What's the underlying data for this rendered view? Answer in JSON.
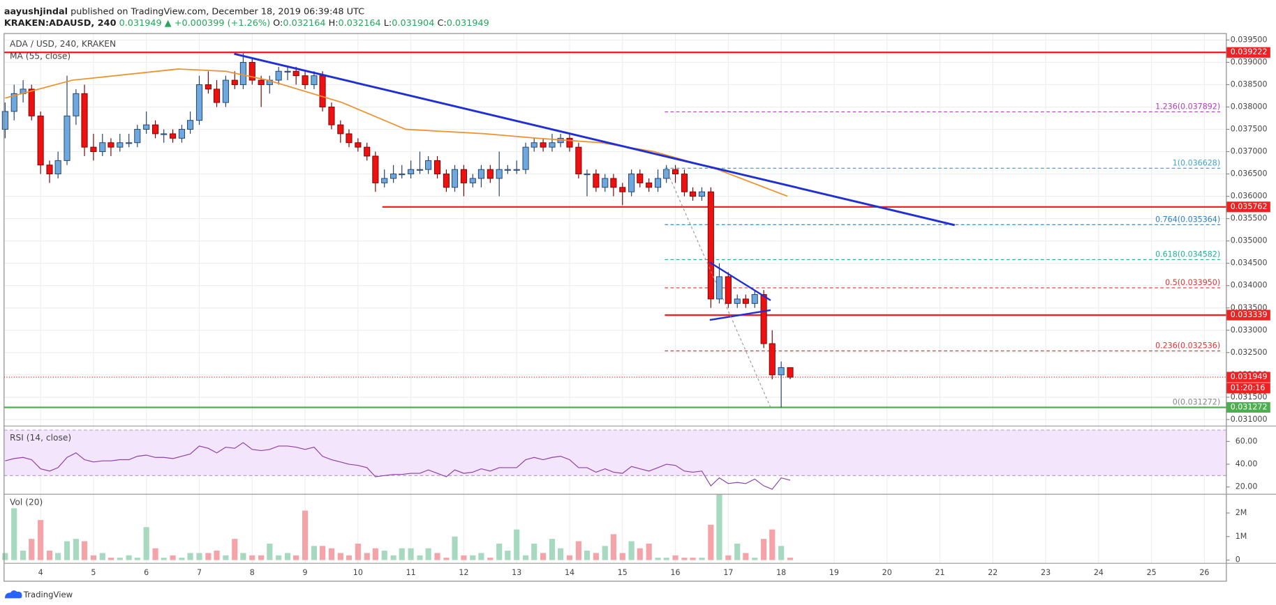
{
  "header": {
    "author": "aayushjindal",
    "published": "published on TradingView.com, December 18, 2019 06:39:48 UTC",
    "symbol": "KRAKEN:ADAUSD, 240",
    "change": "▲ +0.000399 (+1.26%)",
    "o": "O:",
    "h": "H:",
    "l": "L:",
    "c": "C:"
  },
  "chart_data": {
    "type": "candlestick",
    "title": "ADA / USD, 240, KRAKEN",
    "x": [
      3.33,
      3.5,
      3.67,
      3.83,
      4,
      4.17,
      4.33,
      4.5,
      4.67,
      4.83,
      5,
      5.17,
      5.33,
      5.5,
      5.67,
      5.83,
      6,
      6.17,
      6.33,
      6.5,
      6.67,
      6.83,
      7,
      7.17,
      7.33,
      7.5,
      7.67,
      7.83,
      8,
      8.17,
      8.33,
      8.5,
      8.67,
      8.83,
      9,
      9.17,
      9.33,
      9.5,
      9.67,
      9.83,
      10,
      10.17,
      10.33,
      10.5,
      10.67,
      10.83,
      11,
      11.17,
      11.33,
      11.5,
      11.67,
      11.83,
      12,
      12.17,
      12.33,
      12.5,
      12.67,
      12.83,
      13,
      13.17,
      13.33,
      13.5,
      13.67,
      13.83,
      14,
      14.17,
      14.33,
      14.5,
      14.67,
      14.83,
      15,
      15.17,
      15.33,
      15.5,
      15.67,
      15.83,
      16,
      16.17,
      16.33,
      16.5,
      16.67,
      16.83,
      17,
      17.17,
      17.33,
      17.5,
      17.67,
      17.83,
      18,
      18.17
    ],
    "open": [
      0.0375,
      0.0379,
      0.0383,
      0.0384,
      0.0378,
      0.0367,
      0.0365,
      0.0368,
      0.0378,
      0.0383,
      0.0371,
      0.037,
      0.0372,
      0.0371,
      0.0372,
      0.0372,
      0.0375,
      0.0376,
      0.0374,
      0.0374,
      0.0373,
      0.0375,
      0.0377,
      0.0385,
      0.0384,
      0.0381,
      0.0386,
      0.0385,
      0.039,
      0.0386,
      0.0385,
      0.0386,
      0.0388,
      0.0388,
      0.0387,
      0.0385,
      0.0387,
      0.038,
      0.0376,
      0.0374,
      0.0372,
      0.0371,
      0.0369,
      0.0363,
      0.0364,
      0.0365,
      0.0365,
      0.0366,
      0.0366,
      0.0368,
      0.0365,
      0.0362,
      0.0366,
      0.0363,
      0.0364,
      0.0366,
      0.0364,
      0.0366,
      0.0366,
      0.0366,
      0.0371,
      0.0372,
      0.0371,
      0.0372,
      0.0373,
      0.0371,
      0.0365,
      0.0365,
      0.0362,
      0.0364,
      0.0362,
      0.0361,
      0.0365,
      0.0363,
      0.0362,
      0.0364,
      0.0366,
      0.0365,
      0.0361,
      0.036,
      0.0361,
      0.0337,
      0.0342,
      0.0336,
      0.0337,
      0.0336,
      0.0338,
      0.0327,
      0.032,
      0.032164
    ],
    "high": [
      0.0381,
      0.0385,
      0.0386,
      0.0385,
      0.0379,
      0.0368,
      0.037,
      0.0387,
      0.0384,
      0.0385,
      0.0374,
      0.0374,
      0.0373,
      0.0374,
      0.0374,
      0.0376,
      0.0379,
      0.0377,
      0.0375,
      0.0375,
      0.0376,
      0.0379,
      0.0387,
      0.0388,
      0.0386,
      0.0387,
      0.0388,
      0.0392,
      0.0391,
      0.0387,
      0.0387,
      0.0389,
      0.0389,
      0.0389,
      0.0388,
      0.0388,
      0.0388,
      0.0381,
      0.0377,
      0.0375,
      0.0373,
      0.0372,
      0.037,
      0.0366,
      0.0367,
      0.0367,
      0.0368,
      0.037,
      0.0369,
      0.0369,
      0.0366,
      0.0367,
      0.0367,
      0.0365,
      0.0367,
      0.0367,
      0.037,
      0.0367,
      0.0368,
      0.0372,
      0.0373,
      0.0373,
      0.0374,
      0.0374,
      0.0374,
      0.0372,
      0.0366,
      0.0366,
      0.0365,
      0.0365,
      0.0363,
      0.0366,
      0.0366,
      0.0364,
      0.0366,
      0.0367,
      0.0367,
      0.0366,
      0.0362,
      0.0362,
      0.0362,
      0.0345,
      0.0343,
      0.0338,
      0.0338,
      0.0339,
      0.0339,
      0.033,
      0.0323,
      0.032164
    ],
    "low": [
      0.0373,
      0.0377,
      0.0381,
      0.0377,
      0.0365,
      0.0363,
      0.0364,
      0.0367,
      0.0376,
      0.0369,
      0.0368,
      0.0369,
      0.0369,
      0.037,
      0.0371,
      0.0371,
      0.0374,
      0.0373,
      0.0372,
      0.0372,
      0.0372,
      0.0374,
      0.0376,
      0.0383,
      0.038,
      0.038,
      0.0384,
      0.0384,
      0.0385,
      0.038,
      0.0383,
      0.0385,
      0.0386,
      0.0385,
      0.0384,
      0.0384,
      0.0379,
      0.0375,
      0.0372,
      0.0371,
      0.037,
      0.0368,
      0.0361,
      0.0362,
      0.0363,
      0.0364,
      0.0364,
      0.0365,
      0.0365,
      0.0364,
      0.0361,
      0.0361,
      0.036,
      0.0362,
      0.0362,
      0.0363,
      0.036,
      0.0365,
      0.0365,
      0.0365,
      0.037,
      0.037,
      0.037,
      0.0371,
      0.037,
      0.0364,
      0.036,
      0.0361,
      0.0361,
      0.036,
      0.0358,
      0.036,
      0.0362,
      0.0361,
      0.0361,
      0.0363,
      0.0363,
      0.036,
      0.0359,
      0.0359,
      0.0335,
      0.0336,
      0.0335,
      0.0335,
      0.0335,
      0.0335,
      0.0326,
      0.0319,
      0.031272,
      0.031904
    ],
    "close": [
      0.0379,
      0.0383,
      0.0384,
      0.0378,
      0.0367,
      0.0365,
      0.0368,
      0.0378,
      0.0383,
      0.0371,
      0.037,
      0.0372,
      0.0371,
      0.0372,
      0.0372,
      0.0375,
      0.0376,
      0.0374,
      0.0374,
      0.0373,
      0.0375,
      0.0377,
      0.0385,
      0.0384,
      0.0381,
      0.0386,
      0.0385,
      0.039,
      0.0386,
      0.0385,
      0.0386,
      0.0388,
      0.0388,
      0.0387,
      0.0385,
      0.0387,
      0.038,
      0.0376,
      0.0374,
      0.0372,
      0.0371,
      0.0369,
      0.0363,
      0.0364,
      0.0365,
      0.0365,
      0.0366,
      0.0366,
      0.0368,
      0.0365,
      0.0362,
      0.0366,
      0.0363,
      0.0364,
      0.0366,
      0.0364,
      0.0366,
      0.0366,
      0.0366,
      0.0371,
      0.0372,
      0.0371,
      0.0372,
      0.0373,
      0.0371,
      0.0365,
      0.0365,
      0.0362,
      0.0364,
      0.0362,
      0.0361,
      0.0365,
      0.0363,
      0.0362,
      0.0364,
      0.0366,
      0.0365,
      0.0361,
      0.036,
      0.0361,
      0.0337,
      0.0342,
      0.0336,
      0.0337,
      0.0336,
      0.0338,
      0.0327,
      0.032,
      0.032164,
      0.031949
    ],
    "up_color": "#6fa8dc",
    "down_color": "#ee1111",
    "xlim": [
      3.31,
      26.415
    ],
    "xticks": [
      4,
      5,
      6,
      7,
      8,
      9,
      10,
      11,
      12,
      13,
      14,
      15,
      16,
      17,
      18,
      19,
      20,
      21,
      22,
      23,
      24,
      25,
      26
    ],
    "ylim": [
      0.030873,
      0.039645
    ],
    "yticks": [
      {
        "value": 0.0395,
        "label": "0.039500"
      },
      {
        "value": 0.039,
        "label": "0.039000"
      },
      {
        "value": 0.0385,
        "label": "0.038500"
      },
      {
        "value": 0.038,
        "label": "0.038000"
      },
      {
        "value": 0.0375,
        "label": "0.037500"
      },
      {
        "value": 0.037,
        "label": "0.037000"
      },
      {
        "value": 0.0365,
        "label": "0.036500"
      },
      {
        "value": 0.036,
        "label": "0.036000"
      },
      {
        "value": 0.0355,
        "label": "0.035500"
      },
      {
        "value": 0.035,
        "label": "0.035000"
      },
      {
        "value": 0.0345,
        "label": "0.034500"
      },
      {
        "value": 0.034,
        "label": "0.034000"
      },
      {
        "value": 0.0335,
        "label": "0.033500"
      },
      {
        "value": 0.033,
        "label": "0.033000"
      },
      {
        "value": 0.0325,
        "label": "0.032500"
      },
      {
        "value": 0.032,
        "label": "0.032000"
      },
      {
        "value": 0.0315,
        "label": "0.031500"
      },
      {
        "value": 0.031,
        "label": "0.031000"
      }
    ],
    "grid": true,
    "ma": {
      "name": "MA (55, close)",
      "color": "#f0902c",
      "x": [
        3.33,
        4.6,
        6.6,
        7.5,
        8.3,
        9.7,
        10.9,
        12.4,
        13.4,
        14.6,
        15.6,
        16.8,
        18.12
      ],
      "values": [
        0.0382,
        0.0386,
        0.03885,
        0.0388,
        0.0386,
        0.0381,
        0.0375,
        0.0374,
        0.0373,
        0.0372,
        0.037,
        0.0366,
        0.036
      ]
    },
    "levels": [
      {
        "price": 0.039222,
        "color": "#ee2222"
      },
      {
        "price": 0.035762,
        "color": "#ee2222",
        "from": 10.46
      },
      {
        "price": 0.033339,
        "color": "#ee2222",
        "from": 15.8
      },
      {
        "price": 0.031272,
        "color": "#4caf50"
      }
    ],
    "last_color": "#ee2222",
    "timer": "01:20:16",
    "fib_x": [
      15.8,
      26.3
    ],
    "fibs": [
      {
        "label": "1.236(0.037892)",
        "price": 0.037892,
        "color": "#b041b8"
      },
      {
        "label": "1(0.036628)",
        "price": 0.036628,
        "color": "#45a4c8"
      },
      {
        "label": "0.764(0.035364)",
        "price": 0.035364,
        "color": "#2b7fc2"
      },
      {
        "label": "0.618(0.034582)",
        "price": 0.034582,
        "color": "#22b199"
      },
      {
        "label": "0.5(0.033950)",
        "price": 0.03395,
        "color": "#e03232"
      },
      {
        "label": "0.236(0.032536)",
        "price": 0.032536,
        "color": "#e03232"
      },
      {
        "label": "0(0.031272)",
        "price": 0.031272,
        "color": "#888888"
      }
    ],
    "trendlines": [
      {
        "x": [
          7.66,
          21.28
        ],
        "y": [
          0.03919,
          0.035355
        ],
        "color": "#1f2fd6",
        "width": 2.5
      },
      {
        "x": [
          16.65,
          17.8
        ],
        "y": [
          0.03452,
          0.03367
        ],
        "color": "#1f2fd6",
        "width": 2
      },
      {
        "x": [
          16.65,
          17.8
        ],
        "y": [
          0.03323,
          0.03345
        ],
        "color": "#1f2fd6",
        "width": 2
      },
      {
        "x": [
          15.82,
          17.8
        ],
        "y": [
          0.03662,
          0.03127
        ],
        "color": "#999999",
        "width": 1,
        "dashed": true
      }
    ],
    "rsi": {
      "title": "RSI (14, close)",
      "color": "#8e3fa8",
      "band": [
        30,
        70
      ],
      "ylim": [
        14.3,
        72.9
      ],
      "yticks": [
        {
          "value": 60,
          "label": "60.00"
        },
        {
          "value": 40,
          "label": "40.00"
        },
        {
          "value": 20,
          "label": "20.00"
        }
      ],
      "values": [
        43,
        45,
        46,
        44,
        36,
        34,
        37,
        46,
        50,
        44,
        42,
        43,
        43,
        44,
        44,
        47,
        48,
        46,
        46,
        45,
        47,
        49,
        56,
        54,
        50,
        55,
        54,
        59,
        53,
        52,
        53,
        56,
        56,
        55,
        53,
        55,
        47,
        44,
        42,
        40,
        39,
        37,
        29,
        30,
        31,
        31,
        32,
        32,
        35,
        32,
        29,
        35,
        32,
        33,
        36,
        34,
        37,
        37,
        37,
        44,
        46,
        44,
        46,
        47,
        44,
        37,
        37,
        33,
        36,
        33,
        32,
        38,
        36,
        34,
        37,
        40,
        39,
        34,
        33,
        34,
        21,
        28,
        23,
        24,
        23,
        27,
        21,
        18,
        28,
        26
      ]
    },
    "volume": {
      "title": "Vol (20)",
      "up_color": "#a6d9bf",
      "down_color": "#f4a4a8",
      "ylim": [
        -138000,
        2760000
      ],
      "yticks": [
        0,
        {
          "value": 1000000,
          "label": "1M"
        },
        {
          "value": 2000000,
          "label": "2M"
        }
      ],
      "values": [
        300000,
        2200000,
        400000,
        900000,
        1700000,
        400000,
        300000,
        800000,
        900000,
        800000,
        200000,
        300000,
        100000,
        100000,
        200000,
        100000,
        1400000,
        500000,
        100000,
        200000,
        100000,
        300000,
        300000,
        300000,
        400000,
        200000,
        900000,
        300000,
        200000,
        200000,
        700000,
        200000,
        300000,
        200000,
        2100000,
        600000,
        600000,
        500000,
        300000,
        200000,
        700000,
        300000,
        500000,
        400000,
        200000,
        500000,
        500000,
        200000,
        500000,
        300000,
        100000,
        1000000,
        200000,
        200000,
        300000,
        100000,
        700000,
        400000,
        1300000,
        200000,
        700000,
        300000,
        900000,
        500000,
        200000,
        800000,
        400000,
        300000,
        600000,
        1100000,
        300000,
        800000,
        500000,
        700000,
        100000,
        100000,
        200000,
        100000,
        100000,
        100000,
        1500000,
        2800000,
        200000,
        700000,
        300000,
        100000,
        900000,
        1300000,
        600000,
        100000
      ]
    }
  },
  "footer": {
    "brand": "TradingView"
  }
}
